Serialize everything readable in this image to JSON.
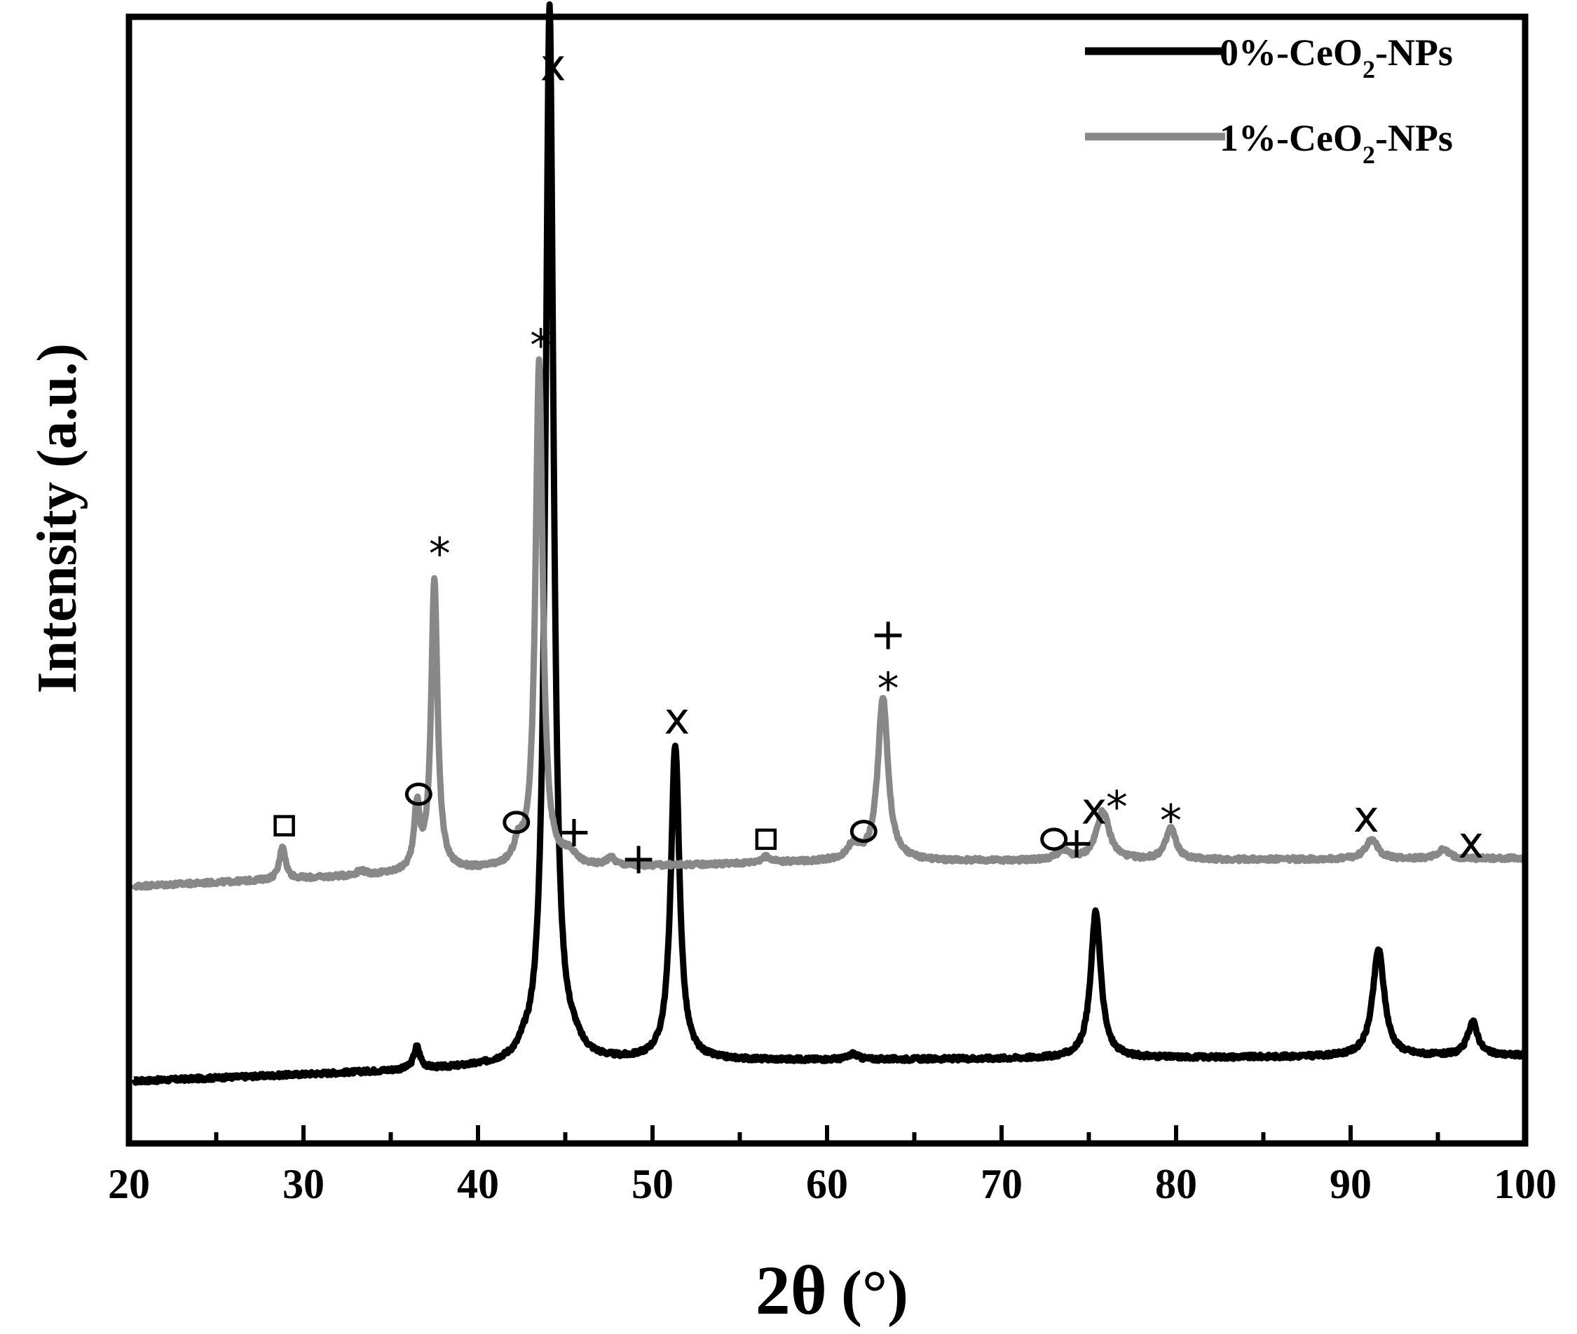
{
  "chart_data": {
    "type": "line",
    "xlabel_main": "2θ",
    "xlabel_unit": "(°)",
    "ylabel": "Intensity (a.u.)",
    "xlim": [
      20,
      100
    ],
    "ylim": [
      0,
      1
    ],
    "x_ticks": [
      20,
      30,
      40,
      50,
      60,
      70,
      80,
      90,
      100
    ],
    "grid": false,
    "legend_position": "top-right",
    "series": [
      {
        "name": "0%-CeO2-NPs",
        "legend_parts": [
          "0%-CeO",
          "2",
          "-NPs"
        ],
        "color": "#000000",
        "baseline": [
          [
            20,
            0.055
          ],
          [
            50,
            0.073
          ],
          [
            70,
            0.075
          ],
          [
            100,
            0.078
          ]
        ],
        "peaks": [
          {
            "x": 36.5,
            "h": 0.02,
            "w": 0.22
          },
          {
            "x": 42.6,
            "h": 0.005,
            "w": 0.3
          },
          {
            "x": 44.1,
            "h": 0.94,
            "w": 0.28
          },
          {
            "x": 45.5,
            "h": 0.008,
            "w": 0.5
          },
          {
            "x": 51.3,
            "h": 0.28,
            "w": 0.3
          },
          {
            "x": 61.5,
            "h": 0.005,
            "w": 0.3
          },
          {
            "x": 75.4,
            "h": 0.13,
            "w": 0.35
          },
          {
            "x": 91.6,
            "h": 0.095,
            "w": 0.4
          },
          {
            "x": 97.0,
            "h": 0.03,
            "w": 0.35
          }
        ]
      },
      {
        "name": "1%-CeO2-NPs",
        "legend_parts": [
          "1%-CeO",
          "2",
          "-NPs"
        ],
        "color": "#888888",
        "baseline": [
          [
            20,
            0.228
          ],
          [
            40,
            0.242
          ],
          [
            60,
            0.25
          ],
          [
            100,
            0.253
          ]
        ],
        "peaks": [
          {
            "x": 28.8,
            "h": 0.03,
            "w": 0.2
          },
          {
            "x": 33.3,
            "h": 0.004,
            "w": 0.3
          },
          {
            "x": 36.5,
            "h": 0.055,
            "w": 0.2
          },
          {
            "x": 37.5,
            "h": 0.26,
            "w": 0.22
          },
          {
            "x": 42.3,
            "h": 0.016,
            "w": 0.3
          },
          {
            "x": 43.5,
            "h": 0.45,
            "w": 0.25
          },
          {
            "x": 45.2,
            "h": 0.01,
            "w": 0.5
          },
          {
            "x": 47.6,
            "h": 0.007,
            "w": 0.3
          },
          {
            "x": 56.5,
            "h": 0.005,
            "w": 0.4
          },
          {
            "x": 61.5,
            "h": 0.013,
            "w": 0.4
          },
          {
            "x": 63.2,
            "h": 0.145,
            "w": 0.35
          },
          {
            "x": 73.5,
            "h": 0.008,
            "w": 0.4
          },
          {
            "x": 75.8,
            "h": 0.043,
            "w": 0.45
          },
          {
            "x": 79.7,
            "h": 0.028,
            "w": 0.35
          },
          {
            "x": 91.2,
            "h": 0.018,
            "w": 0.4
          },
          {
            "x": 95.3,
            "h": 0.008,
            "w": 0.4
          }
        ]
      }
    ],
    "annotations": [
      {
        "symbol": "x",
        "x": 44.3,
        "y": 0.955
      },
      {
        "symbol": "*",
        "x": 43.6,
        "y": 0.715
      },
      {
        "symbol": "*",
        "x": 37.8,
        "y": 0.53
      },
      {
        "symbol": "o",
        "x": 36.6,
        "y": 0.31
      },
      {
        "symbol": "□",
        "x": 28.9,
        "y": 0.282
      },
      {
        "symbol": "o",
        "x": 42.2,
        "y": 0.285
      },
      {
        "symbol": "+",
        "x": 45.5,
        "y": 0.275
      },
      {
        "symbol": "+",
        "x": 49.2,
        "y": 0.251
      },
      {
        "symbol": "x",
        "x": 51.4,
        "y": 0.375
      },
      {
        "symbol": "□",
        "x": 56.5,
        "y": 0.27
      },
      {
        "symbol": "o",
        "x": 62.1,
        "y": 0.277
      },
      {
        "symbol": "+",
        "x": 63.5,
        "y": 0.45
      },
      {
        "symbol": "*",
        "x": 63.5,
        "y": 0.41
      },
      {
        "symbol": "o",
        "x": 73.0,
        "y": 0.27
      },
      {
        "symbol": "+",
        "x": 74.3,
        "y": 0.265
      },
      {
        "symbol": "x",
        "x": 75.3,
        "y": 0.295
      },
      {
        "symbol": "*",
        "x": 76.6,
        "y": 0.305
      },
      {
        "symbol": "*",
        "x": 79.7,
        "y": 0.293
      },
      {
        "symbol": "x",
        "x": 90.9,
        "y": 0.288
      },
      {
        "symbol": "x",
        "x": 96.9,
        "y": 0.265
      }
    ]
  }
}
